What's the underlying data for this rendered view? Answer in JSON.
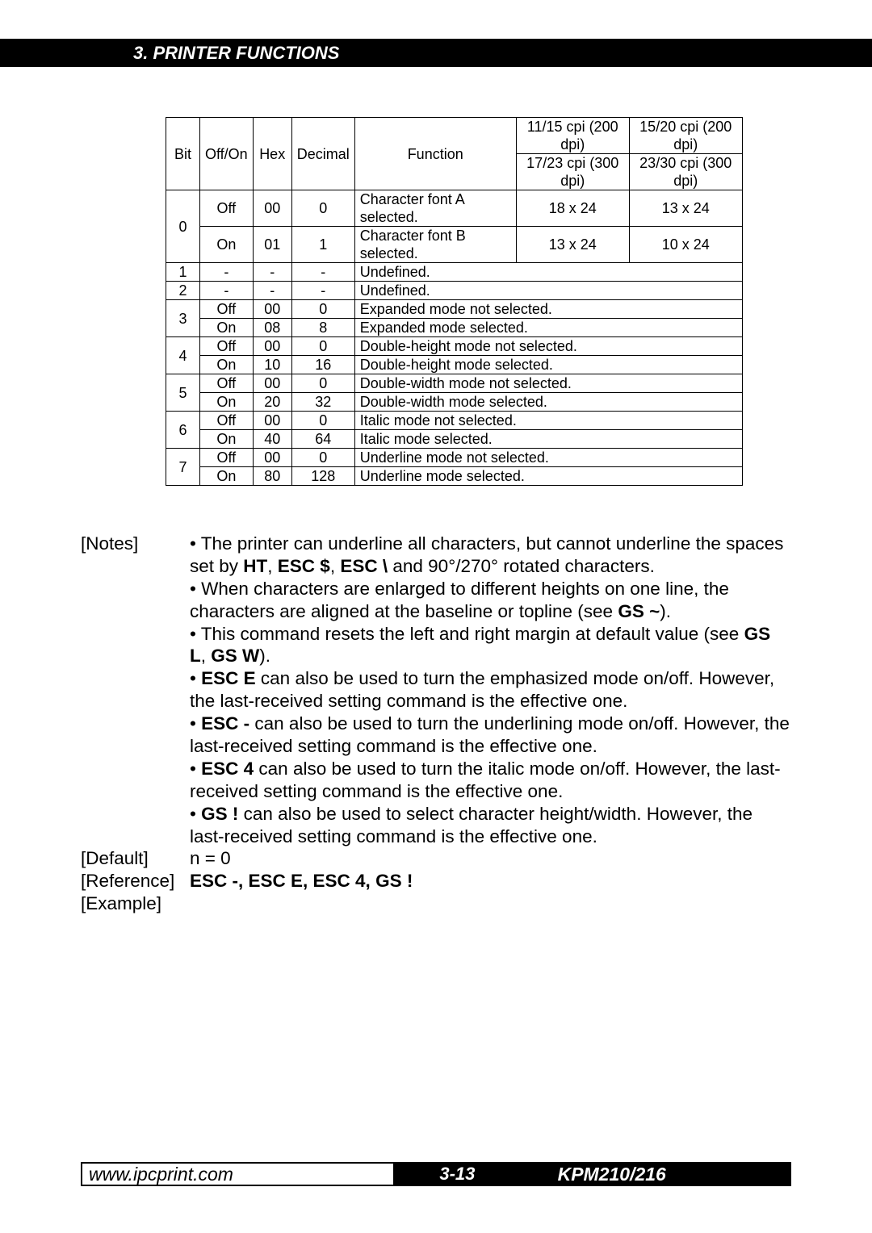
{
  "header": {
    "title": "3.  PRINTER  FUNCTIONS"
  },
  "table": {
    "head": {
      "bit": "Bit",
      "offon": "Off/On",
      "hex": "Hex",
      "decimal": "Decimal",
      "function": "Function",
      "c1a": "11/15 cpi (200 dpi)",
      "c1b": "17/23 cpi (300 dpi)",
      "c2a": "15/20 cpi (200 dpi)",
      "c2b": "23/30 cpi (300 dpi)"
    },
    "r0a": {
      "bit": "0",
      "offon": "Off",
      "hex": "00",
      "dec": "0",
      "fn": "Character font A selected.",
      "c1": "18 x 24",
      "c2": "13 x 24"
    },
    "r0b": {
      "offon": "On",
      "hex": "01",
      "dec": "1",
      "fn": "Character font B selected.",
      "c1": "13 x 24",
      "c2": "10 x 24"
    },
    "r1": {
      "bit": "1",
      "offon": "-",
      "hex": "-",
      "dec": "-",
      "fn": "Undefined."
    },
    "r2": {
      "bit": "2",
      "offon": "-",
      "hex": "-",
      "dec": "-",
      "fn": "Undefined."
    },
    "r3a": {
      "bit": "3",
      "offon": "Off",
      "hex": "00",
      "dec": "0",
      "fn": "Expanded mode not selected."
    },
    "r3b": {
      "offon": "On",
      "hex": "08",
      "dec": "8",
      "fn": "Expanded mode selected."
    },
    "r4a": {
      "bit": "4",
      "offon": "Off",
      "hex": "00",
      "dec": "0",
      "fn": "Double-height mode not selected."
    },
    "r4b": {
      "offon": "On",
      "hex": "10",
      "dec": "16",
      "fn": "Double-height mode selected."
    },
    "r5a": {
      "bit": "5",
      "offon": "Off",
      "hex": "00",
      "dec": "0",
      "fn": "Double-width mode not selected."
    },
    "r5b": {
      "offon": "On",
      "hex": "20",
      "dec": "32",
      "fn": "Double-width mode selected."
    },
    "r6a": {
      "bit": "6",
      "offon": "Off",
      "hex": "00",
      "dec": "0",
      "fn": "Italic mode not selected."
    },
    "r6b": {
      "offon": "On",
      "hex": "40",
      "dec": "64",
      "fn": "Italic mode selected."
    },
    "r7a": {
      "bit": "7",
      "offon": "Off",
      "hex": "00",
      "dec": "0",
      "fn": "Underline mode not selected."
    },
    "r7b": {
      "offon": "On",
      "hex": "80",
      "dec": "128",
      "fn": "Underline mode selected."
    }
  },
  "notes": {
    "label": "[Notes]",
    "n1a": "• The printer can underline all characters, but cannot underline the spaces set by ",
    "n1b": "HT",
    "n1c": ", ",
    "n1d": "ESC $",
    "n1e": ", ",
    "n1f": "ESC \\",
    "n1g": " and 90°/270° rotated characters.",
    "n2a": "• When characters are enlarged to different heights on one line, the characters are aligned at the baseline or topline (see ",
    "n2b": "GS ~",
    "n2c": ").",
    "n3a": "• This command resets the left and right margin at default value (see ",
    "n3b": "GS L",
    "n3c": ", ",
    "n3d": "GS W",
    "n3e": ").",
    "n4a": "• ",
    "n4b": "ESC E",
    "n4c": " can also be used to turn the emphasized mode on/off. However, the last-received setting command is the effective one.",
    "n5a": "• ",
    "n5b": "ESC -",
    "n5c": " can also be used to turn the underlining mode on/off. However, the last-received setting command is the effective one.",
    "n6a": "• ",
    "n6b": "ESC 4",
    "n6c": " can also be used to turn the italic mode on/off. However, the last-received setting command is the effective one.",
    "n7a": "• ",
    "n7b": "GS !",
    "n7c": " can also be used to select character height/width. However, the last-received setting command is the effective one."
  },
  "default": {
    "label": "[Default]",
    "value": "n = 0"
  },
  "reference": {
    "label": "[Reference]",
    "value": "ESC -, ESC E, ESC 4, GS !"
  },
  "example": {
    "label": "[Example]"
  },
  "footer": {
    "url": "www.ipcprint.com",
    "page": "3-13",
    "model": "KPM210/216"
  }
}
